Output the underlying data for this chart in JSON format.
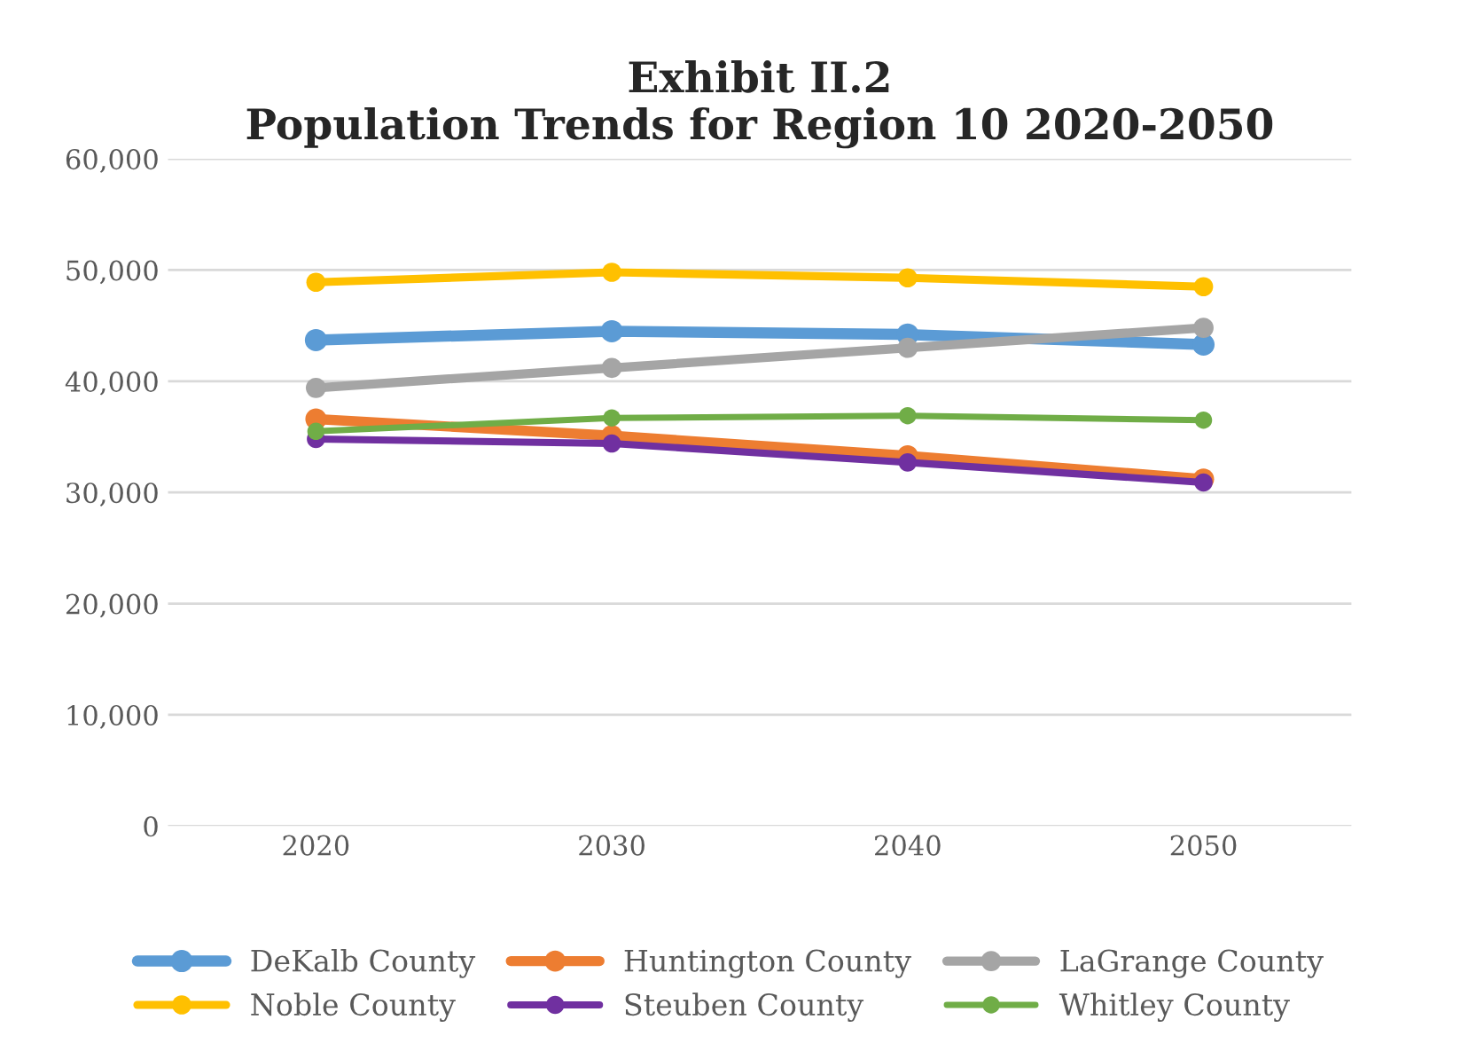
{
  "chart_data": {
    "type": "line",
    "title": "Exhibit II.2\nPopulation Trends for Region 10 2020-2050",
    "categories": [
      "2020",
      "2030",
      "2040",
      "2050"
    ],
    "series": [
      {
        "name": "DeKalb County",
        "color": "#5b9bd5",
        "values": [
          43700,
          44500,
          44200,
          43300
        ]
      },
      {
        "name": "Huntington County",
        "color": "#ed7d31",
        "values": [
          36600,
          35100,
          33300,
          31200
        ]
      },
      {
        "name": "LaGrange County",
        "color": "#a5a5a5",
        "values": [
          39400,
          41200,
          43000,
          44800
        ]
      },
      {
        "name": "Noble County",
        "color": "#ffc000",
        "values": [
          48900,
          49800,
          49300,
          48500
        ]
      },
      {
        "name": "Steuben County",
        "color": "#7030a0",
        "values": [
          34800,
          34400,
          32700,
          30900
        ]
      },
      {
        "name": "Whitley County",
        "color": "#70ad47",
        "values": [
          35500,
          36700,
          36900,
          36500
        ]
      }
    ],
    "ylim": [
      0,
      60000
    ],
    "yticks": [
      {
        "value": 0,
        "label": "0"
      },
      {
        "value": 10000,
        "label": "10,000"
      },
      {
        "value": 20000,
        "label": "20,000"
      },
      {
        "value": 30000,
        "label": "30,000"
      },
      {
        "value": 40000,
        "label": "40,000"
      },
      {
        "value": 50000,
        "label": "50,000"
      },
      {
        "value": 60000,
        "label": "60,000"
      }
    ],
    "grid": "y",
    "legend": "bottom",
    "marker": "circle",
    "line_style": "solid"
  }
}
